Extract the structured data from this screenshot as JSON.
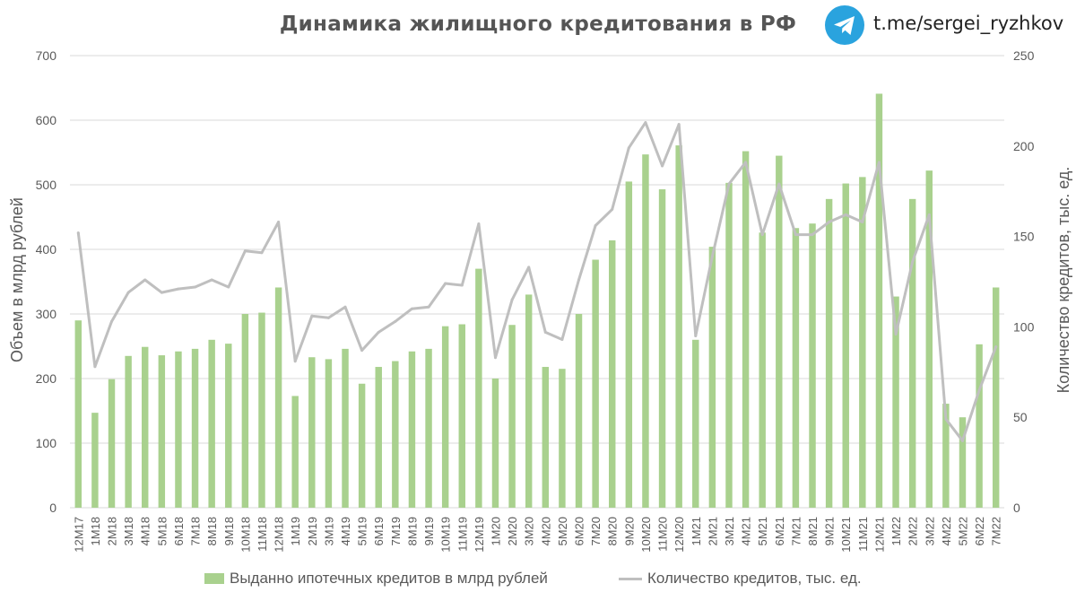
{
  "header": {
    "title": "Динамика жилищного кредитования в РФ",
    "channel_link": "t.me/sergei_ryzhkov",
    "channel_icon": "telegram-icon"
  },
  "colors": {
    "bars": "#A9D18E",
    "line": "#BFBFBF",
    "grid": "#D9D9D9",
    "text": "#595959",
    "telegram": "#2AA3DE"
  },
  "chart_data": {
    "type": "bar",
    "title": "Динамика жилищного кредитования в РФ",
    "xlabel": "",
    "ylabel": "Объем в млрд рублей",
    "y2label": "Количество кредитов, тыс. ед.",
    "ylim": [
      0,
      700
    ],
    "yticks": [
      0,
      100,
      200,
      300,
      400,
      500,
      600,
      700
    ],
    "y2lim": [
      0,
      250
    ],
    "y2ticks": [
      0,
      50,
      100,
      150,
      200,
      250
    ],
    "grid": true,
    "legend_position": "bottom",
    "categories": [
      "12M17",
      "1M18",
      "2M18",
      "3M18",
      "4M18",
      "5M18",
      "6M18",
      "7M18",
      "8M18",
      "9M18",
      "10M18",
      "11M18",
      "12M18",
      "1M19",
      "2M19",
      "3M19",
      "4M19",
      "5M19",
      "6M19",
      "7M19",
      "8M19",
      "9M19",
      "10M19",
      "11M19",
      "12M19",
      "1M20",
      "2M20",
      "3M20",
      "4M20",
      "5M20",
      "6M20",
      "7M20",
      "8M20",
      "9M20",
      "10M20",
      "11M20",
      "12M20",
      "1M21",
      "2M21",
      "3M21",
      "4M21",
      "5M21",
      "6M21",
      "7M21",
      "8M21",
      "9M21",
      "10M21",
      "11M21",
      "12M21",
      "1M22",
      "2M22",
      "3M22",
      "4M22",
      "5M22",
      "6M22",
      "7M22"
    ],
    "series": [
      {
        "name": "Выданно ипотечных кредитов в млрд рублей",
        "type": "bar",
        "axis": "left",
        "values": [
          290,
          147,
          199,
          235,
          249,
          236,
          242,
          246,
          260,
          254,
          300,
          302,
          341,
          173,
          233,
          230,
          246,
          192,
          218,
          227,
          242,
          246,
          281,
          284,
          370,
          200,
          283,
          330,
          218,
          215,
          300,
          384,
          414,
          505,
          547,
          493,
          561,
          260,
          404,
          503,
          552,
          426,
          545,
          433,
          440,
          478,
          502,
          512,
          641,
          327,
          478,
          522,
          161,
          140,
          253,
          341
        ]
      },
      {
        "name": "Количество кредитов, тыс. ед.",
        "type": "line",
        "axis": "right",
        "values": [
          152,
          78,
          103,
          119,
          126,
          119,
          121,
          122,
          126,
          122,
          142,
          141,
          158,
          81,
          106,
          105,
          111,
          87,
          97,
          103,
          110,
          111,
          124,
          123,
          157,
          83,
          115,
          133,
          97,
          93,
          126,
          156,
          165,
          199,
          213,
          189,
          212,
          95,
          139,
          179,
          191,
          151,
          179,
          151,
          151,
          158,
          162,
          158,
          191,
          96,
          136,
          162,
          49,
          37,
          65,
          89
        ]
      }
    ]
  }
}
